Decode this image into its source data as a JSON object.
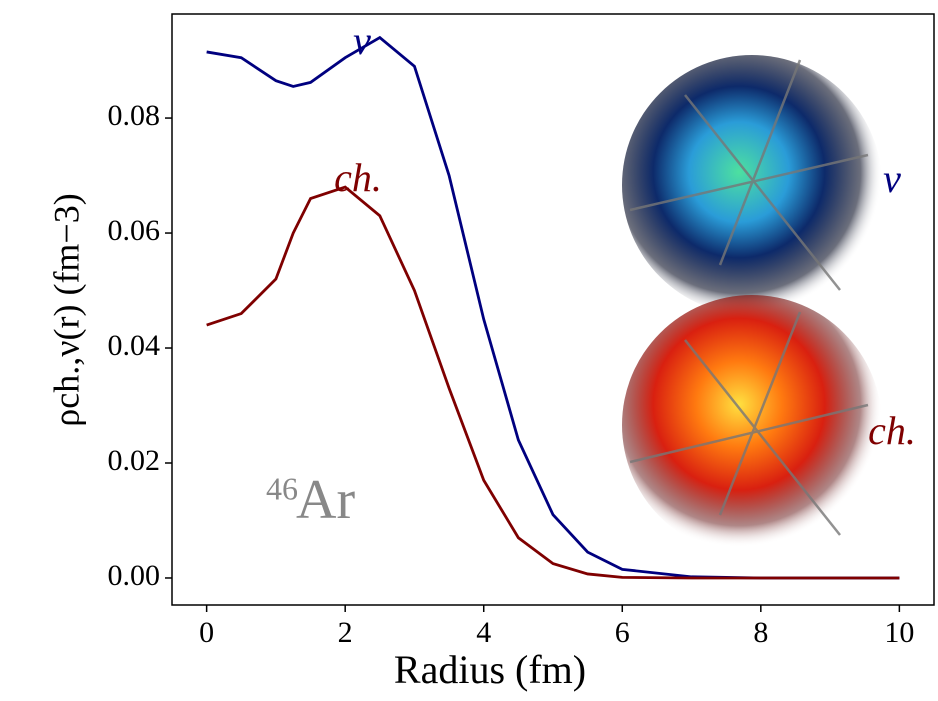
{
  "chart_data": {
    "type": "line",
    "xlabel": "Radius (fm)",
    "ylabel": "ρch.,ν(r) (fm−3)",
    "x": [
      0,
      0.5,
      1,
      1.25,
      1.5,
      2,
      2.5,
      3,
      3.5,
      4,
      4.5,
      5,
      5.5,
      6,
      7,
      8,
      10
    ],
    "series": [
      {
        "name": "ν",
        "color": "#00007f",
        "values": [
          0.0915,
          0.0905,
          0.0865,
          0.0855,
          0.0862,
          0.0905,
          0.094,
          0.089,
          0.07,
          0.045,
          0.024,
          0.011,
          0.0045,
          0.0015,
          0.0002,
          0,
          0
        ]
      },
      {
        "name": "ch.",
        "color": "#7f0000",
        "values": [
          0.044,
          0.046,
          0.052,
          0.06,
          0.066,
          0.068,
          0.063,
          0.05,
          0.033,
          0.017,
          0.007,
          0.0025,
          0.0007,
          0.0001,
          0,
          0,
          0
        ]
      }
    ],
    "isotope_mass": "46",
    "isotope_symbol": "Ar",
    "xlim": [
      -0.5,
      10.5
    ],
    "ylim": [
      -0.0047,
      0.0981
    ],
    "xticks": [
      0,
      2,
      4,
      6,
      8,
      10
    ],
    "yticks": [
      {
        "value": 0,
        "label": "0.00"
      },
      {
        "value": 0.02,
        "label": "0.02"
      },
      {
        "value": 0.04,
        "label": "0.04"
      },
      {
        "value": 0.06,
        "label": "0.06"
      },
      {
        "value": 0.08,
        "label": "0.08"
      }
    ]
  }
}
